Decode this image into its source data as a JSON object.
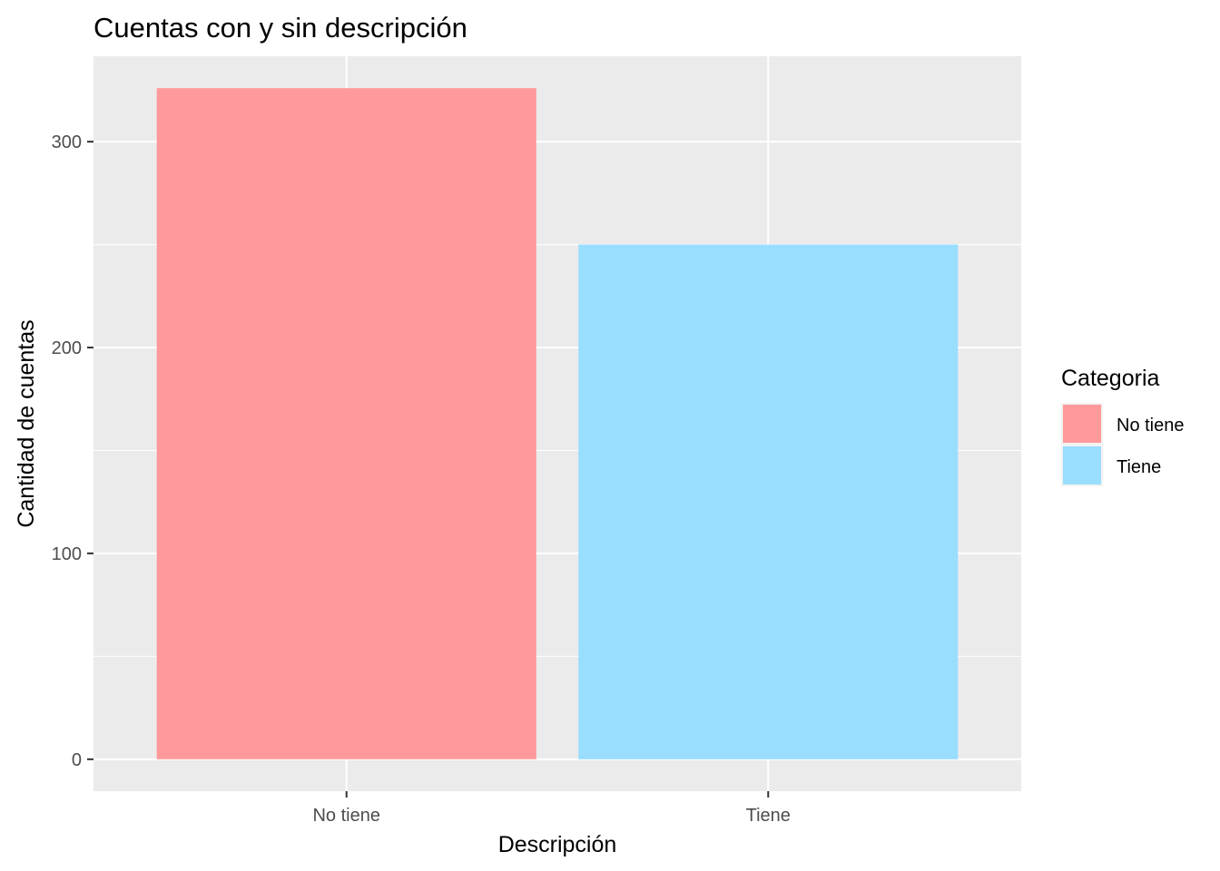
{
  "chart_data": {
    "type": "bar",
    "title": "Cuentas con y sin descripción",
    "xlabel": "Descripción",
    "ylabel": "Cantidad de cuentas",
    "categories": [
      "No tiene",
      "Tiene"
    ],
    "values": [
      326,
      250
    ],
    "colors": [
      "#FF999A",
      "#99DDFF"
    ],
    "ylim": [
      -15.5,
      341.5
    ],
    "yticks": [
      0,
      100,
      200,
      300
    ],
    "grid": true,
    "panel_background": "#EBEBEB",
    "grid_color": "#FFFFFF",
    "legend": {
      "title": "Categoria",
      "position": "right",
      "entries": [
        "No tiene",
        "Tiene"
      ]
    }
  }
}
